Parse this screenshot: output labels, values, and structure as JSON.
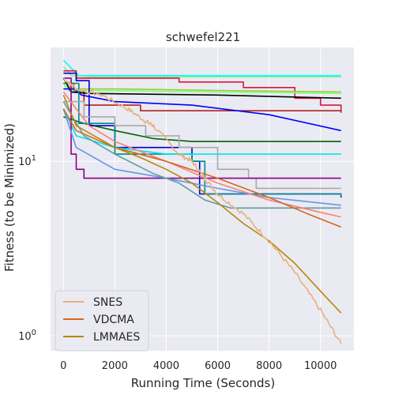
{
  "chart_data": {
    "type": "line",
    "title": "schwefel221",
    "xlabel": "Running Time (Seconds)",
    "ylabel": "Fitness (to be Minimized)",
    "x_scale": "linear",
    "y_scale": "log",
    "xlim": [
      -500,
      11300
    ],
    "ylim": [
      0.82,
      45
    ],
    "x_ticks": [
      0,
      2000,
      4000,
      6000,
      8000,
      10000
    ],
    "x_tick_labels": [
      "0",
      "2000",
      "4000",
      "6000",
      "8000",
      "10000"
    ],
    "y_ticks": [
      1,
      10
    ],
    "y_tick_labels": [
      "10^0",
      "10^1"
    ],
    "grid": true,
    "background": "#eaeaf2",
    "legend": {
      "placement": "lower-left",
      "entries": [
        {
          "label": "SNES",
          "color": "#e8b07c"
        },
        {
          "label": "VDCMA",
          "color": "#d2691e"
        },
        {
          "label": "LMMAES",
          "color": "#b8860b"
        }
      ]
    },
    "series": [
      {
        "name": "",
        "color": "#00ffff",
        "step": false,
        "points": [
          [
            0,
            38
          ],
          [
            600,
            31
          ],
          [
            10800,
            31
          ]
        ]
      },
      {
        "name": "",
        "color": "#90ee90",
        "step": false,
        "points": [
          [
            0,
            35
          ],
          [
            300,
            31
          ],
          [
            1000,
            30.5
          ],
          [
            10800,
            30.5
          ]
        ]
      },
      {
        "name": "",
        "color": "#dc143c",
        "step": true,
        "points": [
          [
            0,
            33
          ],
          [
            500,
            30
          ],
          [
            4500,
            28.5
          ],
          [
            7000,
            26.5
          ],
          [
            9000,
            23
          ],
          [
            10000,
            21
          ],
          [
            10800,
            19.5
          ]
        ]
      },
      {
        "name": "",
        "color": "#b22222",
        "step": true,
        "points": [
          [
            0,
            28
          ],
          [
            400,
            25
          ],
          [
            800,
            21
          ],
          [
            3000,
            19.5
          ],
          [
            10800,
            19
          ]
        ]
      },
      {
        "name": "",
        "color": "#9acd32",
        "step": false,
        "points": [
          [
            0,
            30
          ],
          [
            300,
            26
          ],
          [
            2000,
            26
          ],
          [
            6000,
            25.5
          ],
          [
            10800,
            25
          ]
        ]
      },
      {
        "name": "",
        "color": "#7fff7f",
        "step": false,
        "points": [
          [
            0,
            28
          ],
          [
            200,
            25.5
          ],
          [
            1000,
            25.5
          ],
          [
            10800,
            24.5
          ]
        ]
      },
      {
        "name": "",
        "color": "#000000",
        "step": false,
        "points": [
          [
            0,
            30
          ],
          [
            300,
            25
          ],
          [
            1000,
            24.5
          ],
          [
            6000,
            24
          ],
          [
            10800,
            23
          ]
        ]
      },
      {
        "name": "",
        "color": "#0000ff",
        "step": false,
        "points": [
          [
            0,
            26
          ],
          [
            400,
            26
          ],
          [
            700,
            24
          ],
          [
            2000,
            22
          ],
          [
            5000,
            21
          ],
          [
            8000,
            18.5
          ],
          [
            10800,
            15
          ]
        ]
      },
      {
        "name": "",
        "color": "#006400",
        "step": false,
        "points": [
          [
            0,
            18
          ],
          [
            800,
            16.5
          ],
          [
            2000,
            15
          ],
          [
            3500,
            13.5
          ],
          [
            5000,
            13
          ],
          [
            10800,
            13
          ]
        ]
      },
      {
        "name": "",
        "color": "#0000cd",
        "step": true,
        "points": [
          [
            0,
            32
          ],
          [
            500,
            29
          ],
          [
            1000,
            16
          ],
          [
            2000,
            12
          ],
          [
            5000,
            10
          ],
          [
            5300,
            6.5
          ],
          [
            10800,
            6.2
          ]
        ]
      },
      {
        "name": "",
        "color": "#008b8b",
        "step": true,
        "points": [
          [
            0,
            28
          ],
          [
            600,
            16.5
          ],
          [
            2000,
            11
          ],
          [
            5000,
            10
          ],
          [
            5500,
            6.5
          ],
          [
            10800,
            6.3
          ]
        ]
      },
      {
        "name": "",
        "color": "#00e5ee",
        "step": false,
        "points": [
          [
            0,
            20
          ],
          [
            500,
            14
          ],
          [
            2000,
            12
          ],
          [
            4000,
            11
          ],
          [
            10800,
            11
          ]
        ]
      },
      {
        "name": "",
        "color": "#a9a9a9",
        "step": true,
        "points": [
          [
            0,
            22
          ],
          [
            800,
            18
          ],
          [
            2000,
            16
          ],
          [
            3200,
            14
          ],
          [
            4500,
            12
          ],
          [
            6000,
            9
          ],
          [
            7200,
            8
          ],
          [
            7500,
            7
          ],
          [
            10800,
            7
          ]
        ]
      },
      {
        "name": "",
        "color": "#8b008b",
        "step": true,
        "points": [
          [
            0,
            30
          ],
          [
            300,
            11
          ],
          [
            500,
            9
          ],
          [
            800,
            8
          ],
          [
            10800,
            8
          ]
        ]
      },
      {
        "name": "",
        "color": "#6495ed",
        "step": false,
        "points": [
          [
            0,
            20
          ],
          [
            500,
            12
          ],
          [
            2000,
            9
          ],
          [
            4000,
            8
          ],
          [
            6000,
            7
          ],
          [
            8000,
            6.2
          ],
          [
            10800,
            5.6
          ]
        ]
      },
      {
        "name": "",
        "color": "#5f9ea0",
        "step": false,
        "points": [
          [
            0,
            22
          ],
          [
            800,
            14
          ],
          [
            2000,
            11
          ],
          [
            3500,
            8.5
          ],
          [
            4500,
            7.5
          ],
          [
            5500,
            6
          ],
          [
            6500,
            5.4
          ],
          [
            10800,
            5.4
          ]
        ]
      },
      {
        "name": "",
        "color": "#fa8072",
        "step": false,
        "points": [
          [
            0,
            25
          ],
          [
            1000,
            16
          ],
          [
            2000,
            13
          ],
          [
            4000,
            10
          ],
          [
            6000,
            7.5
          ],
          [
            8000,
            6
          ],
          [
            10000,
            5.1
          ],
          [
            10800,
            4.8
          ]
        ]
      },
      {
        "name": "VDCMA",
        "color": "#d2691e",
        "step": false,
        "points": [
          [
            0,
            20
          ],
          [
            500,
            15
          ],
          [
            2000,
            12
          ],
          [
            4000,
            10
          ],
          [
            6000,
            8
          ],
          [
            8000,
            6.2
          ],
          [
            9500,
            5
          ],
          [
            10800,
            4.2
          ]
        ]
      },
      {
        "name": "LMMAES",
        "color": "#b8860b",
        "step": false,
        "points": [
          [
            0,
            24
          ],
          [
            500,
            16
          ],
          [
            2000,
            12
          ],
          [
            3000,
            10.5
          ],
          [
            4000,
            9
          ],
          [
            5000,
            7.5
          ],
          [
            6000,
            5.8
          ],
          [
            7000,
            4.4
          ],
          [
            8000,
            3.5
          ],
          [
            9000,
            2.6
          ],
          [
            10000,
            1.8
          ],
          [
            10800,
            1.35
          ]
        ]
      },
      {
        "name": "SNES",
        "color": "#e8b07c",
        "step": false,
        "noise": true,
        "points": [
          [
            0,
            30
          ],
          [
            500,
            26
          ],
          [
            1500,
            24
          ],
          [
            2500,
            20
          ],
          [
            3200,
            17
          ],
          [
            3500,
            16
          ],
          [
            4500,
            11
          ],
          [
            5000,
            10
          ],
          [
            5500,
            8
          ],
          [
            6000,
            6.5
          ],
          [
            7000,
            5
          ],
          [
            8000,
            3.5
          ],
          [
            9000,
            2.3
          ],
          [
            10000,
            1.4
          ],
          [
            10800,
            0.9
          ]
        ]
      }
    ]
  }
}
